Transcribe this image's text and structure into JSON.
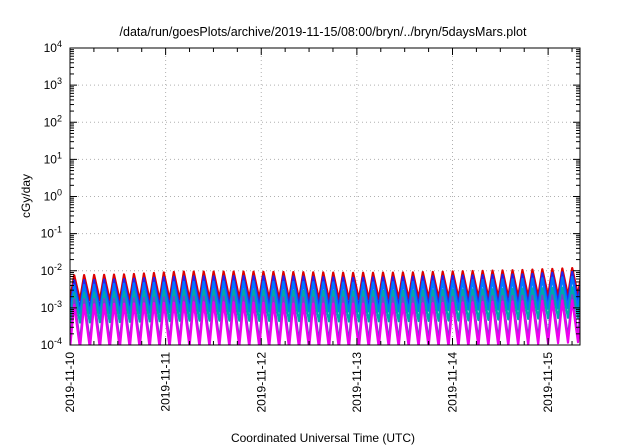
{
  "chart_data": {
    "type": "line",
    "title": "/data/run/goesPlots/archive/2019-11-15/08:00/bryn/../bryn/5daysMars.plot",
    "xlabel": "Coordinated Universal Time (UTC)",
    "ylabel": "cGy/day",
    "y_scale": "log",
    "ylim": [
      0.0001,
      10000
    ],
    "y_ticks": [
      {
        "base": "10",
        "exp": "-4"
      },
      {
        "base": "10",
        "exp": "-3"
      },
      {
        "base": "10",
        "exp": "-2"
      },
      {
        "base": "10",
        "exp": "-1"
      },
      {
        "base": "10",
        "exp": "0"
      },
      {
        "base": "10",
        "exp": "1"
      },
      {
        "base": "10",
        "exp": "2"
      },
      {
        "base": "10",
        "exp": "3"
      },
      {
        "base": "10",
        "exp": "4"
      }
    ],
    "xlim": [
      "2019-11-10T00:00",
      "2019-11-15T08:00"
    ],
    "x_tick_labels": [
      "2019-11-10",
      "2019-11-11",
      "2019-11-12",
      "2019-11-13",
      "2019-11-14",
      "2019-11-15"
    ],
    "grid": true,
    "legend": false,
    "sawtooth_period_hours": 2.5,
    "series": [
      {
        "color": "#dd0000",
        "peak_values": [
          0.0075,
          0.008,
          0.0095,
          0.0095,
          0.0092,
          0.0088,
          0.009,
          0.0098,
          0.0105,
          0.012
        ],
        "trough_values": [
          0.0016,
          0.0016,
          0.0017,
          0.0018,
          0.0017,
          0.0017,
          0.0018,
          0.0019,
          0.002,
          0.0022
        ]
      },
      {
        "color": "#2222ee",
        "peak_values": [
          0.0055,
          0.006,
          0.007,
          0.0072,
          0.007,
          0.0065,
          0.0068,
          0.0075,
          0.008,
          0.0095
        ],
        "trough_values": [
          0.0009,
          0.001,
          0.001,
          0.0011,
          0.0011,
          0.001,
          0.0011,
          0.0012,
          0.0012,
          0.0014
        ]
      },
      {
        "color": "#0077ff",
        "peak_values": [
          0.004,
          0.0045,
          0.005,
          0.0052,
          0.005,
          0.0048,
          0.005,
          0.0055,
          0.006,
          0.007
        ],
        "trough_values": [
          0.0007,
          0.0007,
          0.0008,
          0.0008,
          0.0008,
          0.0008,
          0.0008,
          0.0009,
          0.0009,
          0.001
        ]
      },
      {
        "color": "#00aaaa",
        "peak_values": [
          0.0025,
          0.0027,
          0.003,
          0.003,
          0.0029,
          0.0028,
          0.0029,
          0.0031,
          0.0033,
          0.0036
        ],
        "trough_values": [
          0.0004,
          0.00042,
          0.00045,
          0.00045,
          0.00044,
          0.00043,
          0.00044,
          0.00046,
          0.0005,
          0.00055
        ]
      },
      {
        "color": "#7744cc",
        "peak_values": [
          0.0017,
          0.0018,
          0.002,
          0.002,
          0.0019,
          0.0019,
          0.0019,
          0.002,
          0.0021,
          0.0022
        ],
        "trough_values": [
          0.00012,
          0.00012,
          0.00013,
          0.00013,
          0.00012,
          0.00012,
          0.00013,
          0.00013,
          0.00014,
          0.00016
        ]
      },
      {
        "color": "#ee00ee",
        "peak_values": [
          0.0012,
          0.0013,
          0.0014,
          0.0014,
          0.0013,
          0.0013,
          0.0013,
          0.0014,
          0.0015,
          0.0016
        ],
        "trough_values": [
          8e-05,
          8e-05,
          9e-05,
          9e-05,
          8e-05,
          8e-05,
          9e-05,
          9e-05,
          0.0001,
          0.00012
        ]
      }
    ]
  }
}
